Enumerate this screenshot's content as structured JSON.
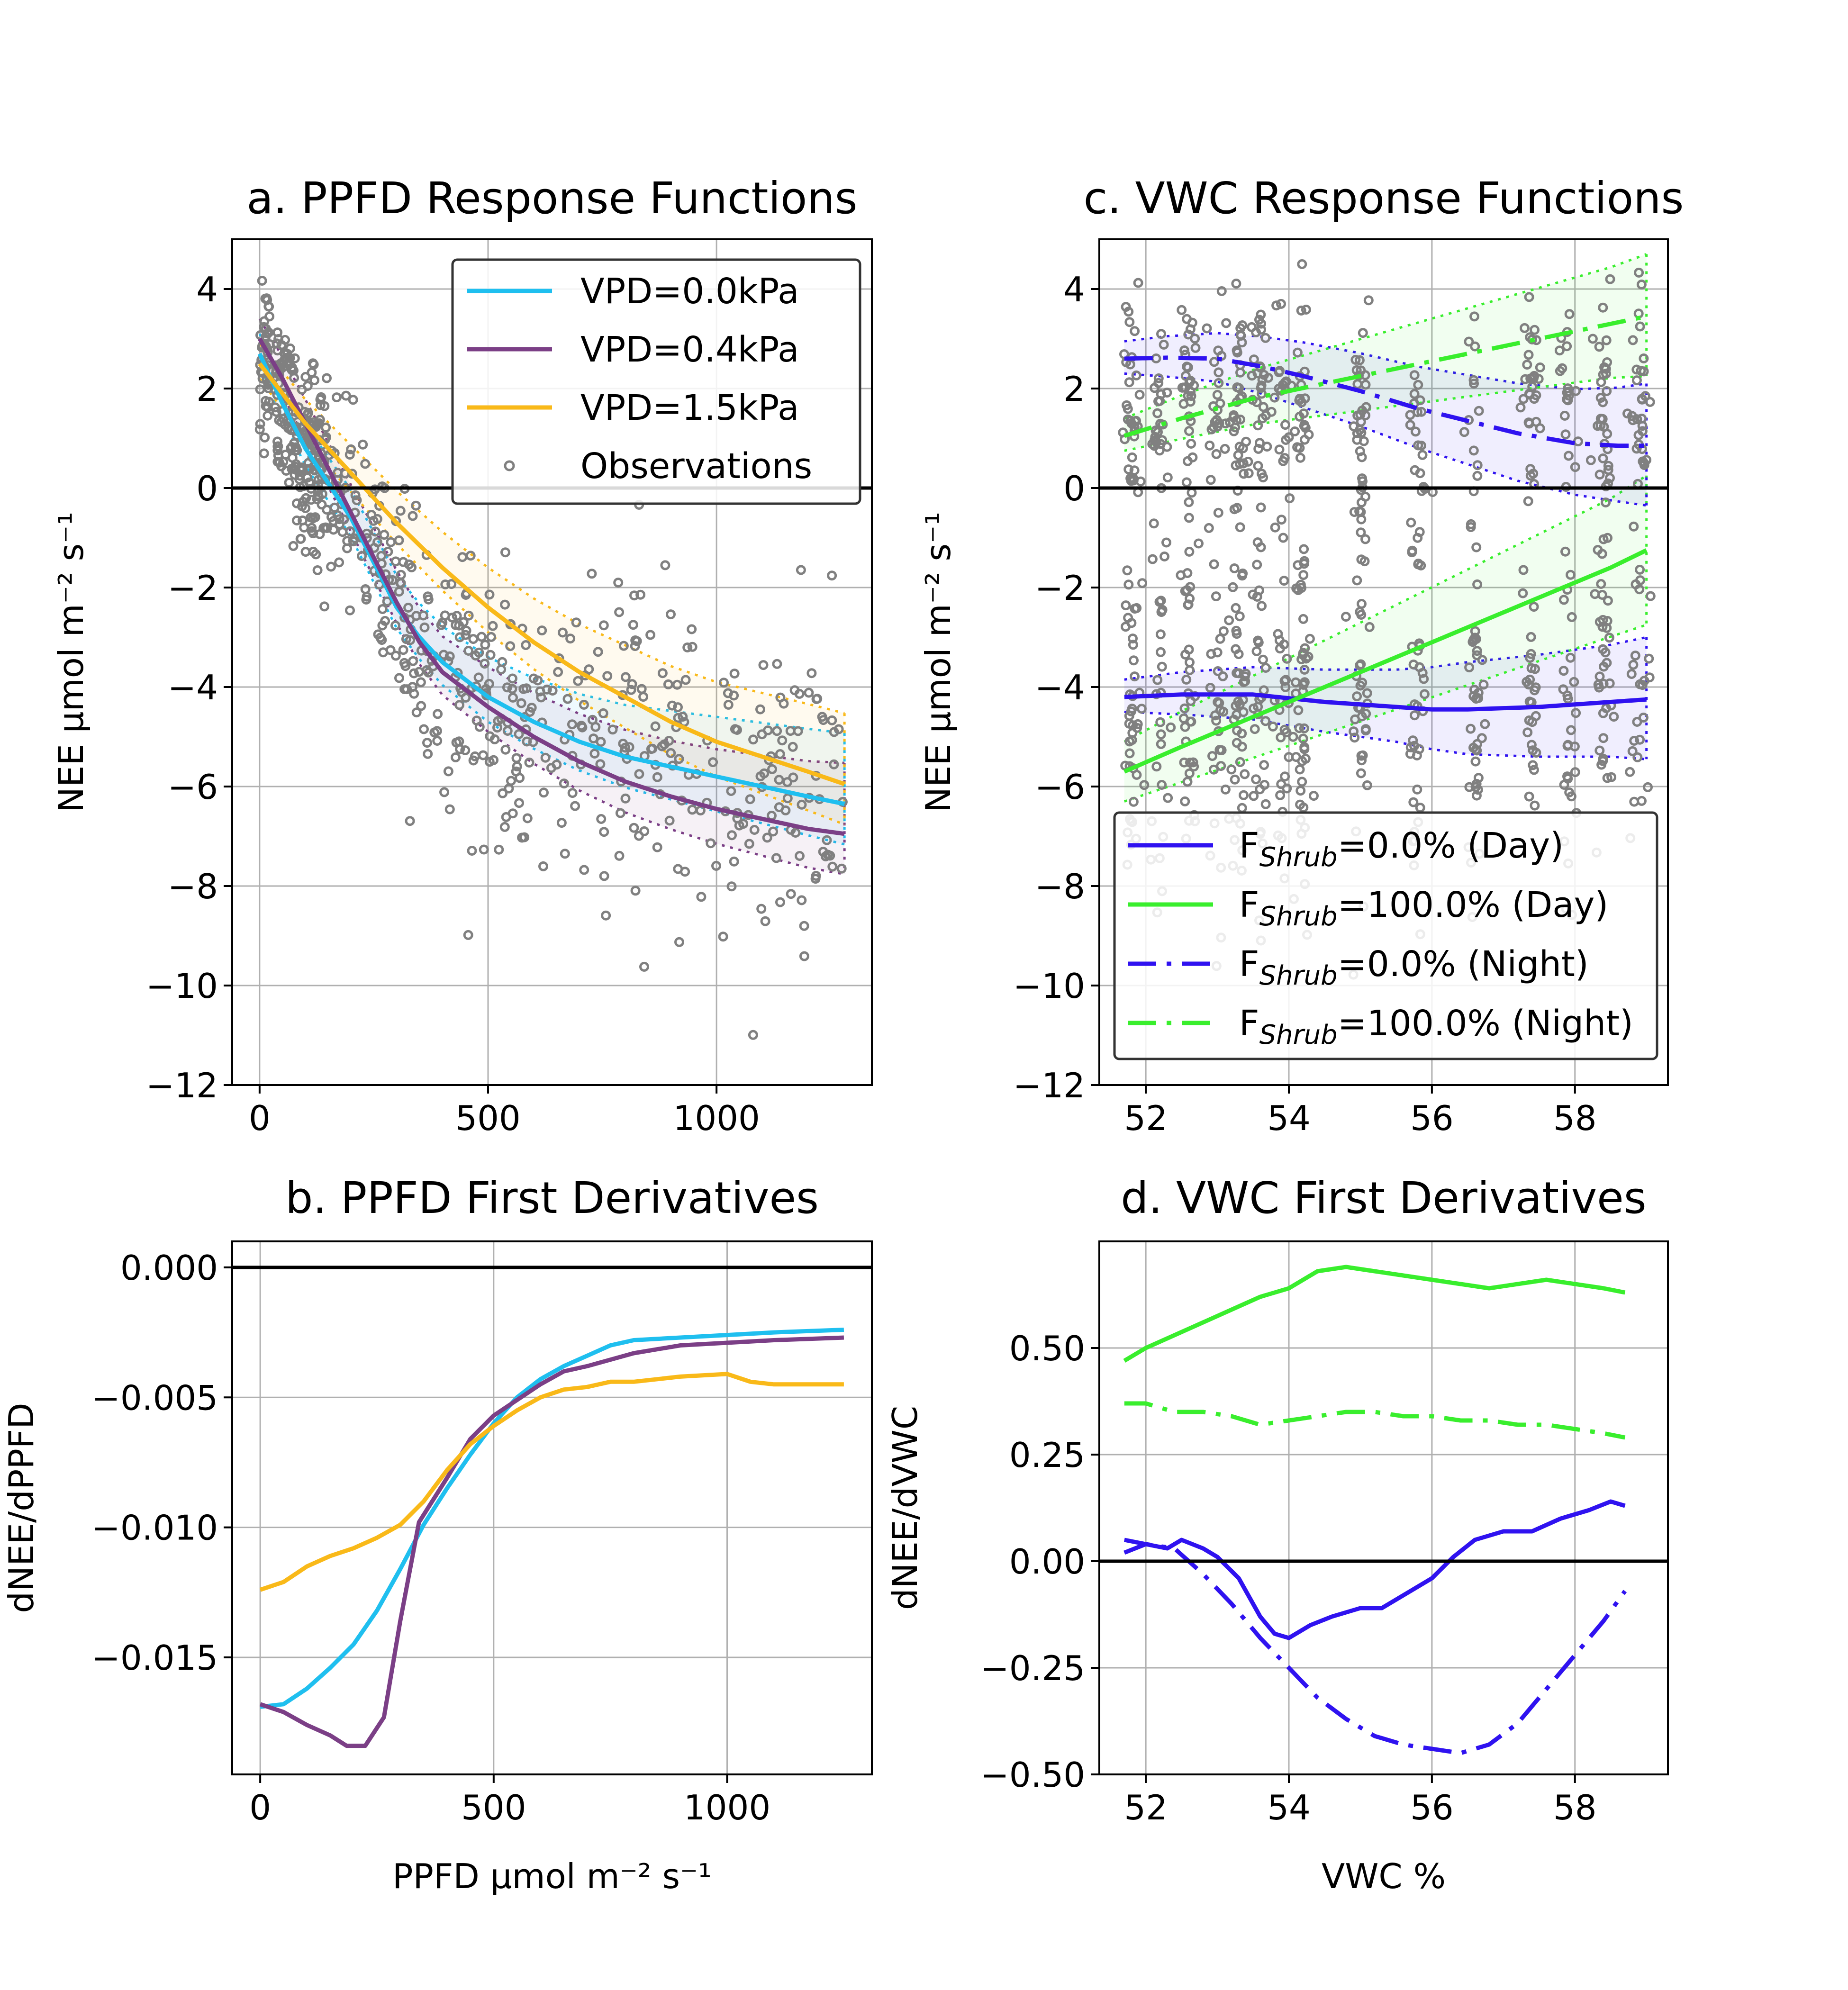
{
  "colors": {
    "vpd0": "#1fbfef",
    "vpd04": "#7b3f86",
    "vpd15": "#f9b919",
    "obs": "#808080",
    "shrub0": "#2f12f0",
    "shrub100": "#39ee2d",
    "zero_line": "#000000",
    "grid": "#b0b0b0"
  },
  "chart_data": [
    {
      "type": "line",
      "panel": "a",
      "title": "a. PPFD Response Functions",
      "xlabel": "",
      "ylabel": "NEE μmol m⁻² s⁻¹",
      "xlim": [
        -60,
        1340
      ],
      "ylim": [
        -12,
        5
      ],
      "xticks": [
        0,
        500,
        1000
      ],
      "yticks": [
        4,
        2,
        0,
        -2,
        -4,
        -6,
        -8,
        -10,
        -12
      ],
      "ytick_labels": [
        "4",
        "2",
        "0",
        "−2",
        "−4",
        "−6",
        "−8",
        "−10",
        "−12"
      ],
      "grid": true,
      "legend_position": "top-right",
      "legend": [
        "VPD=0.0kPa",
        "VPD=0.4kPa",
        "VPD=1.5kPa",
        "Observations"
      ],
      "series": [
        {
          "name": "VPD=0.0kPa",
          "color": "#1fbfef",
          "x": [
            0,
            50,
            100,
            150,
            200,
            250,
            300,
            350,
            400,
            500,
            600,
            700,
            800,
            900,
            1000,
            1100,
            1200,
            1280
          ],
          "y": [
            2.7,
            1.7,
            0.8,
            0.1,
            -0.6,
            -1.5,
            -2.4,
            -3.0,
            -3.5,
            -4.2,
            -4.7,
            -5.1,
            -5.4,
            -5.6,
            -5.8,
            -6.0,
            -6.2,
            -6.35
          ]
        },
        {
          "name": "VPD=0.4kPa",
          "color": "#7b3f86",
          "x": [
            0,
            50,
            100,
            150,
            200,
            250,
            300,
            350,
            400,
            500,
            600,
            700,
            800,
            900,
            1000,
            1100,
            1200,
            1280
          ],
          "y": [
            3.0,
            2.2,
            1.3,
            0.4,
            -0.5,
            -1.4,
            -2.3,
            -3.1,
            -3.7,
            -4.4,
            -5.0,
            -5.5,
            -5.9,
            -6.2,
            -6.45,
            -6.65,
            -6.85,
            -6.95
          ]
        },
        {
          "name": "VPD=1.5kPa",
          "color": "#f9b919",
          "x": [
            0,
            50,
            100,
            150,
            200,
            250,
            300,
            400,
            500,
            600,
            700,
            800,
            900,
            1000,
            1100,
            1200,
            1280
          ],
          "y": [
            2.5,
            1.9,
            1.3,
            0.8,
            0.3,
            -0.2,
            -0.7,
            -1.6,
            -2.4,
            -3.1,
            -3.7,
            -4.2,
            -4.7,
            -5.1,
            -5.4,
            -5.7,
            -5.95
          ]
        }
      ],
      "observations": {
        "name": "Observations",
        "count": 700,
        "x_range": [
          0,
          1280
        ],
        "y_range": [
          -11.5,
          4.5
        ]
      }
    },
    {
      "type": "line",
      "panel": "b",
      "title": "b. PPFD First Derivatives",
      "xlabel": "PPFD μmol m⁻² s⁻¹",
      "ylabel": "dNEE/dPPFD",
      "xlim": [
        -60,
        1310
      ],
      "ylim": [
        -0.0195,
        0.001
      ],
      "xticks": [
        0,
        500,
        1000
      ],
      "yticks": [
        0.0,
        -0.005,
        -0.01,
        -0.015
      ],
      "ytick_labels": [
        "0.000",
        "−0.005",
        "−0.010",
        "−0.015"
      ],
      "grid": true,
      "series": [
        {
          "name": "",
          "color": "#1fbfef",
          "x": [
            0,
            50,
            100,
            150,
            200,
            250,
            300,
            350,
            400,
            450,
            500,
            550,
            600,
            650,
            700,
            750,
            800,
            900,
            1000,
            1100,
            1250
          ],
          "y": [
            -0.0169,
            -0.0168,
            -0.0162,
            -0.0154,
            -0.0145,
            -0.0132,
            -0.0116,
            -0.0099,
            -0.0085,
            -0.0072,
            -0.006,
            -0.005,
            -0.0043,
            -0.0038,
            -0.0034,
            -0.003,
            -0.0028,
            -0.0027,
            -0.0026,
            -0.0025,
            -0.0024
          ]
        },
        {
          "name": "",
          "color": "#7b3f86",
          "x": [
            0,
            50,
            100,
            150,
            185,
            225,
            265,
            300,
            340,
            400,
            450,
            500,
            550,
            600,
            650,
            700,
            800,
            900,
            1000,
            1100,
            1250
          ],
          "y": [
            -0.0168,
            -0.0171,
            -0.0176,
            -0.018,
            -0.0184,
            -0.0184,
            -0.0173,
            -0.0136,
            -0.0098,
            -0.0081,
            -0.0066,
            -0.0057,
            -0.0051,
            -0.0045,
            -0.004,
            -0.0038,
            -0.0033,
            -0.003,
            -0.0029,
            -0.0028,
            -0.0027
          ]
        },
        {
          "name": "",
          "color": "#f9b919",
          "x": [
            0,
            50,
            100,
            150,
            200,
            250,
            300,
            350,
            400,
            450,
            500,
            550,
            600,
            650,
            700,
            750,
            800,
            900,
            1000,
            1050,
            1100,
            1250
          ],
          "y": [
            -0.0124,
            -0.0121,
            -0.0115,
            -0.0111,
            -0.0108,
            -0.0104,
            -0.0099,
            -0.009,
            -0.0078,
            -0.0068,
            -0.0061,
            -0.0055,
            -0.005,
            -0.0047,
            -0.0046,
            -0.0044,
            -0.0044,
            -0.0042,
            -0.0041,
            -0.0044,
            -0.0045,
            -0.0045
          ]
        }
      ]
    },
    {
      "type": "line",
      "panel": "c",
      "title": "c. VWC Response Functions",
      "xlabel": "",
      "ylabel": "NEE μmol m⁻² s⁻¹",
      "xlim": [
        51.35,
        59.3
      ],
      "ylim": [
        -12,
        5
      ],
      "xticks": [
        52,
        54,
        56,
        58
      ],
      "yticks": [
        4,
        2,
        0,
        -2,
        -4,
        -6,
        -8,
        -10,
        -12
      ],
      "ytick_labels": [
        "4",
        "2",
        "0",
        "−2",
        "−4",
        "−6",
        "−8",
        "−10",
        "−12"
      ],
      "grid": true,
      "legend_position": "bottom-right",
      "legend_prefix": "F",
      "legend_subscript": "Shrub",
      "legend_suffixes": [
        "=0.0% (Day)",
        "=100.0% (Day)",
        "=0.0% (Night)",
        "=100.0% (Night)"
      ],
      "series": [
        {
          "name": "FShrub=0.0% (Day)",
          "style": "solid",
          "color": "#2f12f0",
          "x": [
            51.7,
            52.5,
            53.5,
            54.5,
            55.5,
            56.0,
            56.5,
            57.5,
            58.5,
            59.0
          ],
          "y": [
            -4.2,
            -4.15,
            -4.15,
            -4.3,
            -4.4,
            -4.45,
            -4.45,
            -4.4,
            -4.3,
            -4.25
          ]
        },
        {
          "name": "FShrub=100.0% (Day)",
          "style": "solid",
          "color": "#39ee2d",
          "x": [
            51.7,
            52.5,
            53.5,
            54.5,
            55.5,
            56.5,
            57.5,
            58.5,
            59.0
          ],
          "y": [
            -5.7,
            -5.2,
            -4.6,
            -4.0,
            -3.4,
            -2.8,
            -2.2,
            -1.6,
            -1.25
          ]
        },
        {
          "name": "FShrub=0.0% (Night)",
          "style": "dashdot",
          "color": "#2f12f0",
          "x": [
            51.7,
            52.3,
            53.0,
            53.6,
            54.2,
            55.0,
            55.8,
            56.5,
            57.2,
            58.0,
            58.6,
            59.0
          ],
          "y": [
            2.6,
            2.62,
            2.6,
            2.45,
            2.25,
            1.95,
            1.6,
            1.35,
            1.1,
            0.9,
            0.85,
            0.85
          ]
        },
        {
          "name": "FShrub=100.0% (Night)",
          "style": "dashdot",
          "color": "#39ee2d",
          "x": [
            51.7,
            52.5,
            53.5,
            54.5,
            55.5,
            56.5,
            57.5,
            58.5,
            59.0
          ],
          "y": [
            1.05,
            1.4,
            1.8,
            2.1,
            2.4,
            2.7,
            3.0,
            3.3,
            3.45
          ]
        }
      ],
      "observations": {
        "name": "Observations",
        "count": 900,
        "x_range": [
          51.7,
          59.0
        ],
        "y_range": [
          -11.5,
          4.5
        ]
      }
    },
    {
      "type": "line",
      "panel": "d",
      "title": "d. VWC First Derivatives",
      "xlabel": "VWC %",
      "ylabel": "dNEE/dVWC",
      "xlim": [
        51.35,
        59.3
      ],
      "ylim": [
        -0.5,
        0.75
      ],
      "xticks": [
        52,
        54,
        56,
        58
      ],
      "yticks": [
        0.5,
        0.25,
        0.0,
        -0.25,
        -0.5
      ],
      "ytick_labels": [
        "0.50",
        "0.25",
        "0.00",
        "−0.25",
        "−0.50"
      ],
      "grid": true,
      "series": [
        {
          "name": "",
          "style": "solid",
          "color": "#39ee2d",
          "x": [
            51.7,
            52.0,
            52.4,
            52.8,
            53.2,
            53.6,
            54.0,
            54.4,
            54.8,
            55.2,
            55.6,
            56.0,
            56.4,
            56.8,
            57.2,
            57.6,
            58.0,
            58.4,
            58.7
          ],
          "y": [
            0.47,
            0.5,
            0.53,
            0.56,
            0.59,
            0.62,
            0.64,
            0.68,
            0.69,
            0.68,
            0.67,
            0.66,
            0.65,
            0.64,
            0.65,
            0.66,
            0.65,
            0.64,
            0.63
          ]
        },
        {
          "name": "",
          "style": "dashdot",
          "color": "#39ee2d",
          "x": [
            51.7,
            52.0,
            52.4,
            52.8,
            53.2,
            53.6,
            54.0,
            54.4,
            54.8,
            55.2,
            55.6,
            56.0,
            56.4,
            56.8,
            57.2,
            57.6,
            58.0,
            58.4,
            58.7
          ],
          "y": [
            0.37,
            0.37,
            0.35,
            0.35,
            0.34,
            0.32,
            0.33,
            0.34,
            0.35,
            0.35,
            0.34,
            0.34,
            0.33,
            0.33,
            0.32,
            0.32,
            0.31,
            0.3,
            0.29
          ]
        },
        {
          "name": "",
          "style": "solid",
          "color": "#2f12f0",
          "x": [
            51.7,
            52.0,
            52.3,
            52.5,
            52.8,
            53.0,
            53.3,
            53.6,
            53.8,
            54.0,
            54.3,
            54.6,
            55.0,
            55.3,
            55.6,
            56.0,
            56.3,
            56.6,
            57.0,
            57.4,
            57.8,
            58.2,
            58.5,
            58.7
          ],
          "y": [
            0.05,
            0.04,
            0.03,
            0.05,
            0.03,
            0.01,
            -0.04,
            -0.13,
            -0.17,
            -0.18,
            -0.15,
            -0.13,
            -0.11,
            -0.11,
            -0.08,
            -0.04,
            0.01,
            0.05,
            0.07,
            0.07,
            0.1,
            0.12,
            0.14,
            0.13
          ]
        },
        {
          "name": "",
          "style": "dashdot",
          "color": "#2f12f0",
          "x": [
            51.7,
            52.0,
            52.4,
            52.8,
            53.2,
            53.6,
            54.0,
            54.4,
            54.8,
            55.2,
            55.6,
            56.0,
            56.4,
            56.8,
            57.2,
            57.6,
            58.0,
            58.4,
            58.7
          ],
          "y": [
            0.02,
            0.04,
            0.03,
            -0.03,
            -0.1,
            -0.18,
            -0.25,
            -0.32,
            -0.37,
            -0.41,
            -0.43,
            -0.44,
            -0.45,
            -0.43,
            -0.38,
            -0.3,
            -0.22,
            -0.14,
            -0.07
          ]
        }
      ]
    }
  ]
}
